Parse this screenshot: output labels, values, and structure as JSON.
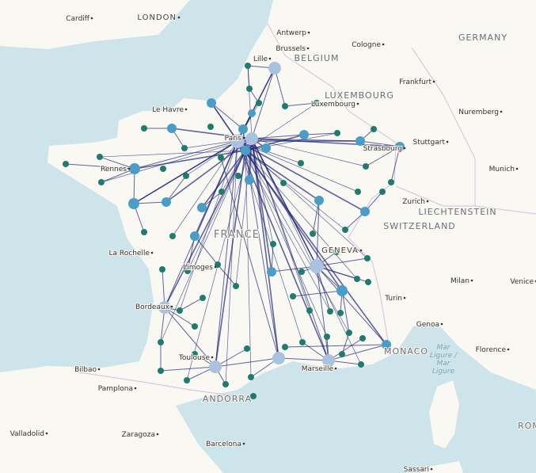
{
  "map": {
    "cities": [
      "Cardiff",
      "LONDON",
      "Antwerp",
      "Brussels",
      "Cologne",
      "Lille",
      "Luxembourg",
      "Frankfurt",
      "Le Havre",
      "Nuremberg",
      "Paris",
      "Stuttgart",
      "Strasbourg",
      "Munich",
      "Rennes",
      "Zurich",
      "GENEVA",
      "La Rochelle",
      "Limoges",
      "Milan",
      "Venice",
      "Turin",
      "Bordeaux",
      "Genoa",
      "Florence",
      "Bilbao",
      "Toulouse",
      "Marseille",
      "Pamplona",
      "Valladolid",
      "Zaragoza",
      "Barcelona",
      "Sassari"
    ],
    "regions": [
      "BELGIUM",
      "GERMANY",
      "LUXEMBOURG",
      "LIECHTENSTEIN",
      "SWITZERLAND",
      "FRANCE",
      "MONACO",
      "ANDORRA",
      "ROME"
    ],
    "sea_label": [
      "Mar",
      "Ligure /",
      "Mar",
      "Ligure"
    ]
  }
}
